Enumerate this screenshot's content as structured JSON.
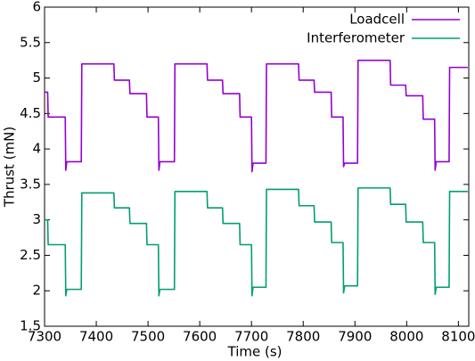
{
  "chart_data": {
    "type": "line",
    "xlabel": "Time (s)",
    "ylabel": "Thrust (mN)",
    "xlim": [
      7300,
      8120
    ],
    "ylim": [
      1.5,
      6
    ],
    "xticks": [
      7300,
      7400,
      7500,
      7600,
      7700,
      7800,
      7900,
      8000,
      8100
    ],
    "yticks": [
      1.5,
      2,
      2.5,
      3,
      3.5,
      4,
      4.5,
      5,
      5.5,
      6
    ],
    "grid": false,
    "legend": "top-right",
    "x": [
      7300,
      7306,
      7307,
      7340,
      7341,
      7343,
      7371,
      7372,
      7434,
      7435,
      7464,
      7465,
      7497,
      7498,
      7520,
      7521,
      7523,
      7551,
      7552,
      7614,
      7615,
      7644,
      7645,
      7677,
      7678,
      7700,
      7701,
      7703,
      7728,
      7729,
      7791,
      7792,
      7821,
      7822,
      7854,
      7855,
      7877,
      7878,
      7880,
      7905,
      7906,
      7968,
      7969,
      7998,
      7999,
      8031,
      8032,
      8054,
      8055,
      8057,
      8082,
      8083,
      8118
    ],
    "series": [
      {
        "name": "Loadcell",
        "color": "#9400d3",
        "values": [
          4.8,
          4.8,
          4.45,
          4.45,
          3.7,
          3.82,
          3.82,
          5.2,
          5.2,
          4.97,
          4.97,
          4.78,
          4.78,
          4.45,
          4.45,
          3.7,
          3.82,
          3.82,
          5.2,
          5.2,
          4.97,
          4.97,
          4.78,
          4.78,
          4.45,
          4.45,
          3.68,
          3.8,
          3.8,
          5.2,
          5.2,
          4.97,
          4.97,
          4.8,
          4.8,
          4.45,
          4.45,
          3.75,
          3.8,
          3.8,
          5.25,
          5.25,
          4.9,
          4.9,
          4.75,
          4.75,
          4.42,
          4.42,
          3.7,
          3.82,
          3.82,
          5.15,
          5.15
        ]
      },
      {
        "name": "Interferometer",
        "color": "#009e73",
        "values": [
          3.0,
          3.0,
          2.65,
          2.65,
          1.93,
          2.02,
          2.02,
          3.38,
          3.38,
          3.17,
          3.17,
          2.95,
          2.95,
          2.65,
          2.65,
          1.93,
          2.02,
          2.02,
          3.4,
          3.4,
          3.17,
          3.17,
          2.95,
          2.95,
          2.65,
          2.65,
          1.93,
          2.05,
          2.05,
          3.43,
          3.43,
          3.2,
          3.2,
          2.97,
          2.97,
          2.68,
          2.68,
          1.97,
          2.07,
          2.07,
          3.45,
          3.45,
          3.22,
          3.22,
          2.97,
          2.97,
          2.68,
          2.68,
          1.95,
          2.05,
          2.05,
          3.4,
          3.4
        ]
      }
    ]
  }
}
